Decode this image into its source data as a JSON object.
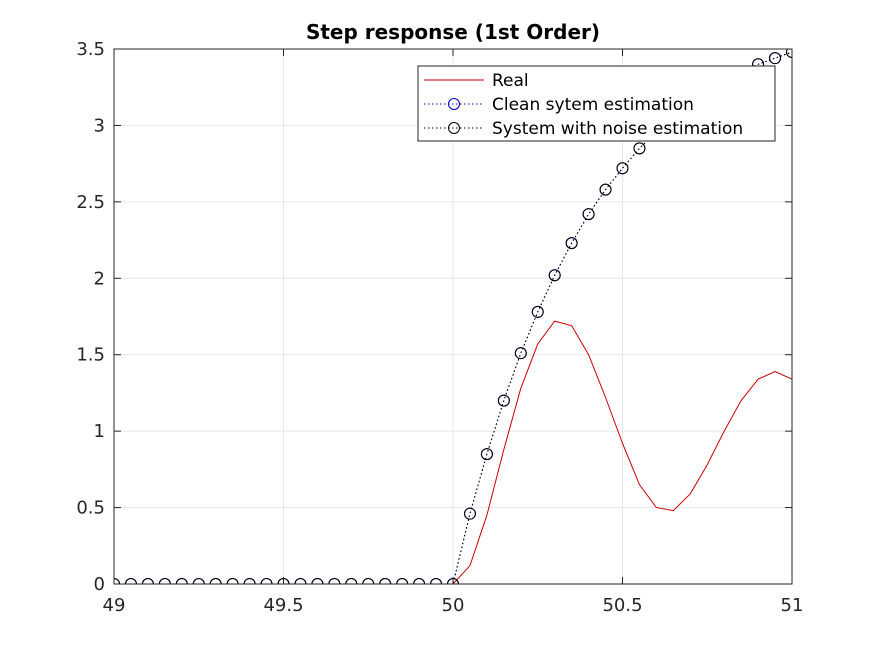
{
  "chart_data": {
    "type": "line",
    "title": "Step response (1st Order)",
    "xlabel": "",
    "ylabel": "",
    "xlim": [
      49,
      51
    ],
    "ylim": [
      0,
      3.5
    ],
    "grid": true,
    "legend_position": "top-right",
    "x_ticks": [
      "49",
      "49.5",
      "50",
      "50.5",
      "51"
    ],
    "y_ticks": [
      "0",
      "0.5",
      "1",
      "1.5",
      "2",
      "2.5",
      "3",
      "3.5"
    ],
    "series": [
      {
        "name": "Real",
        "color": "#cc0000",
        "style": "solid",
        "marker": "none",
        "x": [
          49,
          49.05,
          49.1,
          49.15,
          49.2,
          49.25,
          49.3,
          49.35,
          49.4,
          49.45,
          49.5,
          49.55,
          49.6,
          49.65,
          49.7,
          49.75,
          49.8,
          49.85,
          49.9,
          49.95,
          50,
          50.05,
          50.1,
          50.15,
          50.2,
          50.25,
          50.3,
          50.35,
          50.4,
          50.45,
          50.5,
          50.55,
          50.6,
          50.65,
          50.7,
          50.75,
          50.8,
          50.85,
          50.9,
          50.95,
          51
        ],
        "y": [
          0,
          0,
          0,
          0,
          0,
          0,
          0,
          0,
          0,
          0,
          0,
          0,
          0,
          0,
          0,
          0,
          0,
          0,
          0,
          0,
          0,
          0.12,
          0.45,
          0.88,
          1.28,
          1.57,
          1.72,
          1.69,
          1.5,
          1.22,
          0.92,
          0.65,
          0.5,
          0.48,
          0.59,
          0.78,
          1.0,
          1.2,
          1.34,
          1.39,
          1.34
        ]
      },
      {
        "name": "Clean sytem estimation",
        "color": "#0000cc",
        "style": "dotted",
        "marker": "circle",
        "x": [
          49,
          49.05,
          49.1,
          49.15,
          49.2,
          49.25,
          49.3,
          49.35,
          49.4,
          49.45,
          49.5,
          49.55,
          49.6,
          49.65,
          49.7,
          49.75,
          49.8,
          49.85,
          49.9,
          49.95,
          50,
          50.05,
          50.1,
          50.15,
          50.2,
          50.25,
          50.3,
          50.35,
          50.4,
          50.45,
          50.5,
          50.55,
          50.6,
          50.65,
          50.7,
          50.75,
          50.8,
          50.85,
          50.9,
          50.95,
          51
        ],
        "y": [
          0,
          0,
          0,
          0,
          0,
          0,
          0,
          0,
          0,
          0,
          0,
          0,
          0,
          0,
          0,
          0,
          0,
          0,
          0,
          0,
          0,
          0.46,
          0.85,
          1.2,
          1.51,
          1.78,
          2.02,
          2.23,
          2.42,
          2.58,
          2.72,
          2.85,
          2.96,
          3.06,
          3.14,
          3.22,
          3.29,
          3.35,
          3.4,
          3.44,
          3.48
        ]
      },
      {
        "name": "System with noise estimation",
        "color": "#000000",
        "style": "dotted",
        "marker": "circle",
        "x": [
          49,
          49.05,
          49.1,
          49.15,
          49.2,
          49.25,
          49.3,
          49.35,
          49.4,
          49.45,
          49.5,
          49.55,
          49.6,
          49.65,
          49.7,
          49.75,
          49.8,
          49.85,
          49.9,
          49.95,
          50,
          50.05,
          50.1,
          50.15,
          50.2,
          50.25,
          50.3,
          50.35,
          50.4,
          50.45,
          50.5,
          50.55,
          50.6,
          50.65,
          50.7,
          50.75,
          50.8,
          50.85,
          50.9,
          50.95,
          51
        ],
        "y": [
          0,
          0,
          0,
          0,
          0,
          0,
          0,
          0,
          0,
          0,
          0,
          0,
          0,
          0,
          0,
          0,
          0,
          0,
          0,
          0,
          0,
          0.46,
          0.85,
          1.2,
          1.51,
          1.78,
          2.02,
          2.23,
          2.42,
          2.58,
          2.72,
          2.85,
          2.96,
          3.06,
          3.14,
          3.22,
          3.29,
          3.35,
          3.4,
          3.44,
          3.48
        ]
      }
    ]
  }
}
